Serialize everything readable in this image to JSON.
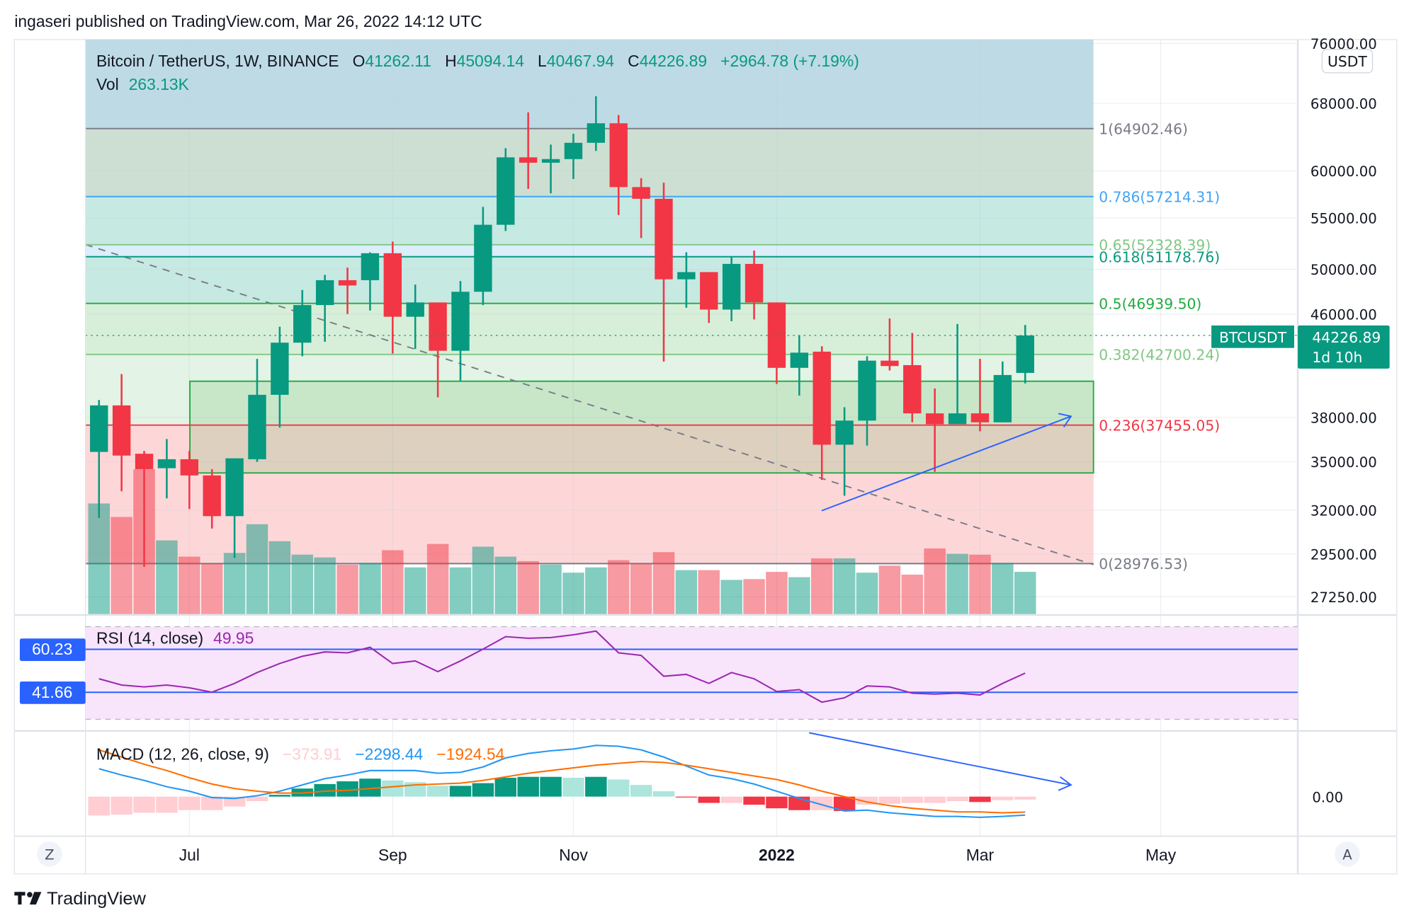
{
  "publish_line": "ingaseri published on TradingView.com, Mar 26, 2022 14:12 UTC",
  "legend": {
    "symbol": "Bitcoin / TetherUS, 1W, BINANCE",
    "o_label": "O",
    "o": "41262.11",
    "h_label": "H",
    "h": "45094.14",
    "l_label": "L",
    "l": "40467.94",
    "c_label": "C",
    "c": "44226.89",
    "change": "+2964.78 (+7.19%)",
    "vol_label": "Vol",
    "vol": "263.13K"
  },
  "colors": {
    "up": "#089981",
    "down": "#f23645",
    "rsi": "#9c27b0",
    "macd": "#2196f3",
    "signal": "#ff6d00",
    "accent": "#2962ff"
  },
  "price_axis": {
    "currency_button": "USDT",
    "ticks": [
      "76000.00",
      "68000.00",
      "60000.00",
      "55000.00",
      "50000.00",
      "46000.00",
      "38000.00",
      "35000.00",
      "32000.00",
      "29500.00",
      "27250.00"
    ],
    "tick_values": [
      76000,
      68000,
      60000,
      55000,
      50000,
      46000,
      38000,
      35000,
      32000,
      29500,
      27250
    ],
    "symbol_tag": "BTCUSDT",
    "last_price": "44226.89",
    "countdown": "1d 10h"
  },
  "fib_levels": [
    {
      "label": "1(64902.46)",
      "price": 64902.46,
      "color": "#787b86",
      "band": "#cddfd2"
    },
    {
      "label": "0.786(57214.31)",
      "price": 57214.31,
      "color": "#42a5f5",
      "band": "#c6e9e2"
    },
    {
      "label": "0.65(52328.39)",
      "price": 52328.39,
      "color": "#81c784",
      "band": "#dbeefa"
    },
    {
      "label": "0.618(51178.76)",
      "price": 51178.76,
      "color": "#089981",
      "band": "#c6e9e2"
    },
    {
      "label": "0.5(46939.50)",
      "price": 46939.5,
      "color": "#22ab41",
      "band": "#d7efd9"
    },
    {
      "label": "0.382(42700.24)",
      "price": 42700.24,
      "color": "#81c784",
      "band": "#e3f3e5"
    },
    {
      "label": "0.236(37455.05)",
      "price": 37455.05,
      "color": "#f23645",
      "band": "#fdd7d8"
    },
    {
      "label": "0(28976.53)",
      "price": 28976.53,
      "color": "#787b86",
      "band": null
    }
  ],
  "candles": [
    [
      35640,
      39240,
      31540,
      38850
    ],
    [
      38850,
      41170,
      33130,
      35400
    ],
    [
      35520,
      35700,
      28800,
      34520
    ],
    [
      34580,
      36500,
      32700,
      35160
    ],
    [
      35160,
      35700,
      32060,
      34120
    ],
    [
      34120,
      34520,
      30920,
      31640
    ],
    [
      31640,
      35220,
      29280,
      35220
    ],
    [
      35160,
      42350,
      34990,
      39620
    ],
    [
      39620,
      44950,
      37280,
      43640
    ],
    [
      43640,
      48120,
      42560,
      46790
    ],
    [
      46790,
      49490,
      43710,
      49000
    ],
    [
      49000,
      50160,
      46020,
      48520
    ],
    [
      49000,
      51600,
      46320,
      51510
    ],
    [
      51510,
      52630,
      42770,
      45790
    ],
    [
      45790,
      48600,
      43130,
      47020
    ],
    [
      47020,
      47020,
      39430,
      42990
    ],
    [
      42990,
      48920,
      40630,
      47960
    ],
    [
      47960,
      56130,
      46790,
      54300
    ],
    [
      54300,
      62580,
      53680,
      61530
    ],
    [
      61530,
      66880,
      58040,
      60920
    ],
    [
      60920,
      63000,
      57550,
      61330
    ],
    [
      61330,
      64280,
      59100,
      63210
    ],
    [
      63210,
      68910,
      62270,
      65540
    ],
    [
      65540,
      66550,
      55290,
      58230
    ],
    [
      58230,
      59200,
      52980,
      56980
    ],
    [
      56980,
      58710,
      42140,
      49080
    ],
    [
      49080,
      51600,
      46560,
      49740
    ],
    [
      49740,
      49740,
      45260,
      46400
    ],
    [
      46400,
      51170,
      45410,
      50500
    ],
    [
      50500,
      51770,
      45560,
      47020
    ],
    [
      47020,
      47020,
      40420,
      41650
    ],
    [
      41650,
      44220,
      39560,
      42840
    ],
    [
      42920,
      43350,
      33840,
      36120
    ],
    [
      36120,
      38720,
      32860,
      37770
    ],
    [
      37770,
      42560,
      36060,
      42210
    ],
    [
      42210,
      45640,
      41450,
      41790
    ],
    [
      41860,
      44440,
      37650,
      38280
    ],
    [
      38280,
      40090,
      34350,
      37520
    ],
    [
      37520,
      45180,
      37520,
      38280
    ],
    [
      38280,
      42350,
      37030,
      37650
    ],
    [
      37650,
      42140,
      37650,
      41100
    ],
    [
      41262.11,
      45094.14,
      40467.94,
      44226.89
    ]
  ],
  "volume_k": [
    689,
    605,
    902,
    459,
    358,
    314,
    381,
    560,
    454,
    370,
    353,
    308,
    319,
    398,
    291,
    437,
    291,
    420,
    358,
    330,
    308,
    258,
    291,
    336,
    314,
    386,
    274,
    274,
    213,
    218,
    263,
    230,
    347,
    347,
    258,
    302,
    246,
    409,
    375,
    370,
    319,
    263.13
  ],
  "rsi": {
    "title": "RSI (14, close)",
    "value": "49.95",
    "band_labels": [
      "60.23",
      "41.66"
    ],
    "band_values": [
      60.23,
      41.66
    ],
    "upper": 70,
    "lower": 30,
    "values": [
      47.5,
      44.8,
      44.0,
      44.8,
      43.6,
      41.7,
      45.5,
      50.2,
      54.1,
      57.2,
      59.1,
      58.7,
      61.1,
      54.1,
      55.2,
      50.6,
      55.2,
      60.3,
      65.7,
      65.0,
      65.3,
      66.5,
      68.1,
      58.7,
      57.6,
      48.6,
      49.4,
      45.5,
      50.2,
      47.5,
      42.0,
      42.8,
      37.4,
      39.3,
      44.4,
      44.0,
      41.3,
      40.9,
      41.3,
      40.5,
      45.5,
      49.95
    ]
  },
  "macd": {
    "title": "MACD (12, 26, close, 9)",
    "hist_value": "−373.91",
    "macd_value": "−2298.44",
    "signal_value": "−1924.54",
    "zero_label": "0.00",
    "macd": [
      3472,
      2688,
      2016,
      1232,
      672,
      -112,
      -224,
      112,
      672,
      1456,
      2240,
      2688,
      3248,
      3248,
      3248,
      2912,
      3024,
      3696,
      4816,
      5376,
      5712,
      5936,
      6384,
      6272,
      5824,
      4928,
      3808,
      2688,
      2240,
      1568,
      672,
      -224,
      -1008,
      -1792,
      -1680,
      -2016,
      -2240,
      -2464,
      -2464,
      -2576,
      -2464,
      -2298.44
    ],
    "signal": [
      5824,
      4928,
      4032,
      3248,
      2352,
      1568,
      1008,
      672,
      448,
      448,
      672,
      784,
      1008,
      1232,
      1456,
      1568,
      1680,
      2016,
      2464,
      2912,
      3248,
      3584,
      3920,
      4144,
      4368,
      4256,
      3920,
      3472,
      3024,
      2576,
      2128,
      1456,
      672,
      0,
      -672,
      -1120,
      -1456,
      -1680,
      -1904,
      -1904,
      -2016,
      -1924.54
    ]
  },
  "time_axis": {
    "labels": [
      {
        "text": "Jul",
        "idx": 4
      },
      {
        "text": "Sep",
        "idx": 13
      },
      {
        "text": "Nov",
        "idx": 21
      },
      {
        "text": "2022",
        "idx": 30,
        "bold": true
      },
      {
        "text": "Mar",
        "idx": 39
      },
      {
        "text": "May",
        "idx": 47
      }
    ],
    "left_button": "Z",
    "right_button": "A"
  },
  "brand": "TradingView"
}
